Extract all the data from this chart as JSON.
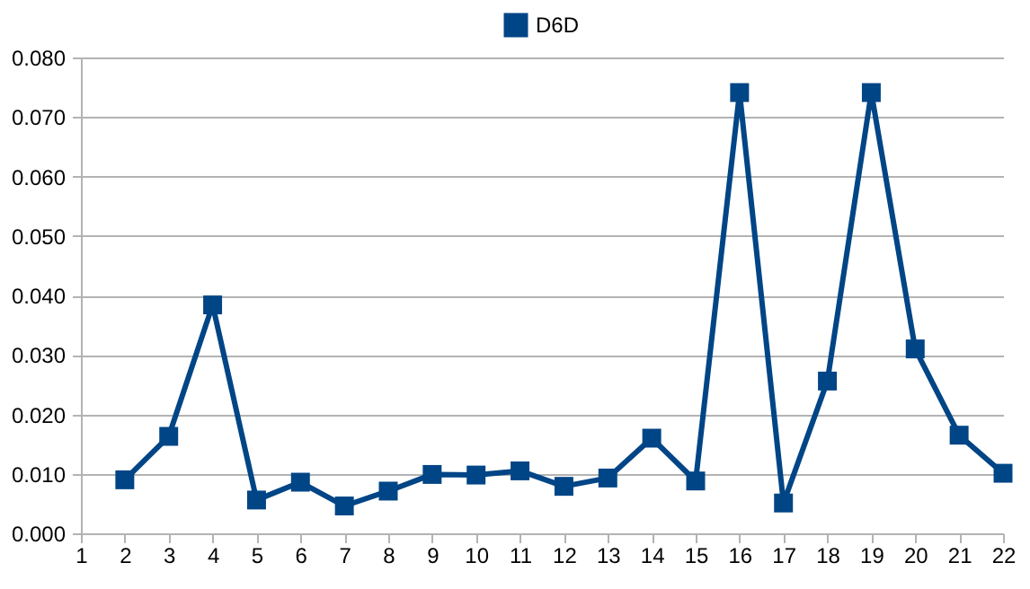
{
  "chart_data": {
    "type": "line",
    "x": [
      2,
      3,
      4,
      5,
      6,
      7,
      8,
      9,
      10,
      11,
      12,
      13,
      14,
      15,
      16,
      17,
      18,
      19,
      20,
      21,
      22
    ],
    "series": [
      {
        "name": "D6D",
        "color": "#004586",
        "values": [
          0.009,
          0.0163,
          0.0384,
          0.0056,
          0.0086,
          0.0046,
          0.0071,
          0.0099,
          0.0098,
          0.0105,
          0.0079,
          0.0093,
          0.016,
          0.0088,
          0.0741,
          0.0051,
          0.0256,
          0.0741,
          0.031,
          0.0165,
          0.0101
        ]
      }
    ],
    "xlim": [
      1,
      22
    ],
    "xticks": [
      1,
      2,
      3,
      4,
      5,
      6,
      7,
      8,
      9,
      10,
      11,
      12,
      13,
      14,
      15,
      16,
      17,
      18,
      19,
      20,
      21,
      22
    ],
    "ylim": [
      0,
      0.08
    ],
    "yticks": [
      {
        "value": 0,
        "label": "0.000"
      },
      {
        "value": 0.01,
        "label": "0.010"
      },
      {
        "value": 0.02,
        "label": "0.020"
      },
      {
        "value": 0.03,
        "label": "0.030"
      },
      {
        "value": 0.04,
        "label": "0.040"
      },
      {
        "value": 0.05,
        "label": "0.050"
      },
      {
        "value": 0.06,
        "label": "0.060"
      },
      {
        "value": 0.07,
        "label": "0.070"
      },
      {
        "value": 0.08,
        "label": "0.080"
      }
    ],
    "grid": "y",
    "legend": "top",
    "marker": "square",
    "line_style": "solid"
  }
}
